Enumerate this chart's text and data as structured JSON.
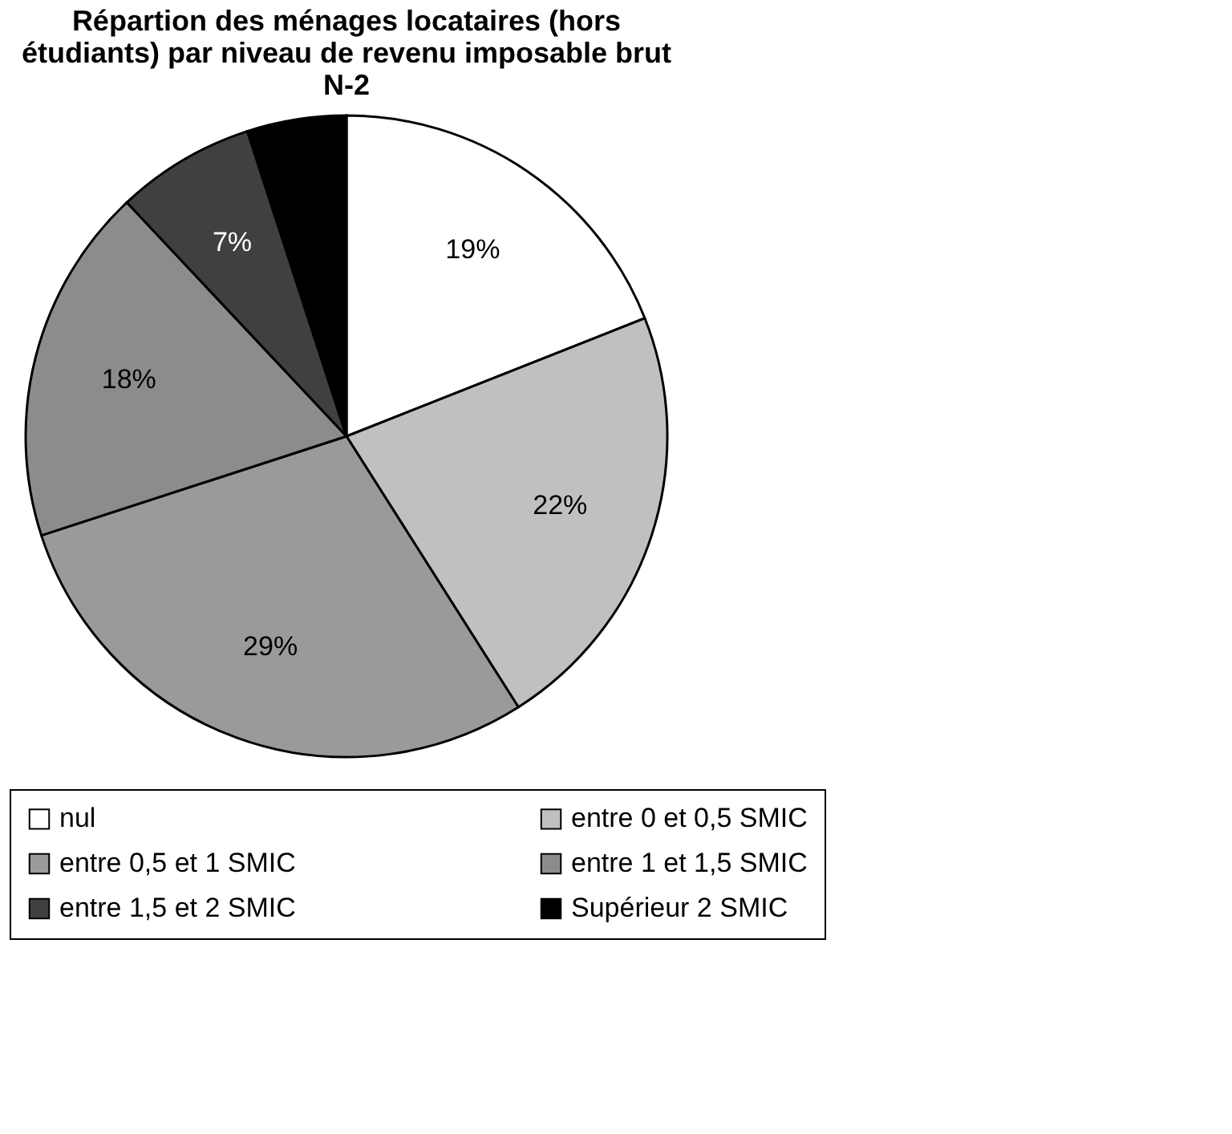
{
  "chart_data": {
    "type": "pie",
    "title": "Répartion des ménages locataires (hors étudiants) par niveau de revenu imposable brut N-2",
    "categories": [
      "nul",
      "entre 0 et 0,5 SMIC",
      "entre 0,5 et 1 SMIC",
      "entre 1 et 1,5 SMIC",
      "entre 1,5 et 2 SMIC",
      "Supérieur 2 SMIC"
    ],
    "values": [
      19,
      22,
      29,
      18,
      7,
      5
    ],
    "colors": [
      "#ffffff",
      "#c0c0c0",
      "#9a9a9a",
      "#8c8c8c",
      "#404040",
      "#000000"
    ],
    "value_labels": [
      "19%",
      "22%",
      "29%",
      "18%",
      "7%",
      null
    ],
    "legend": "bottom"
  }
}
